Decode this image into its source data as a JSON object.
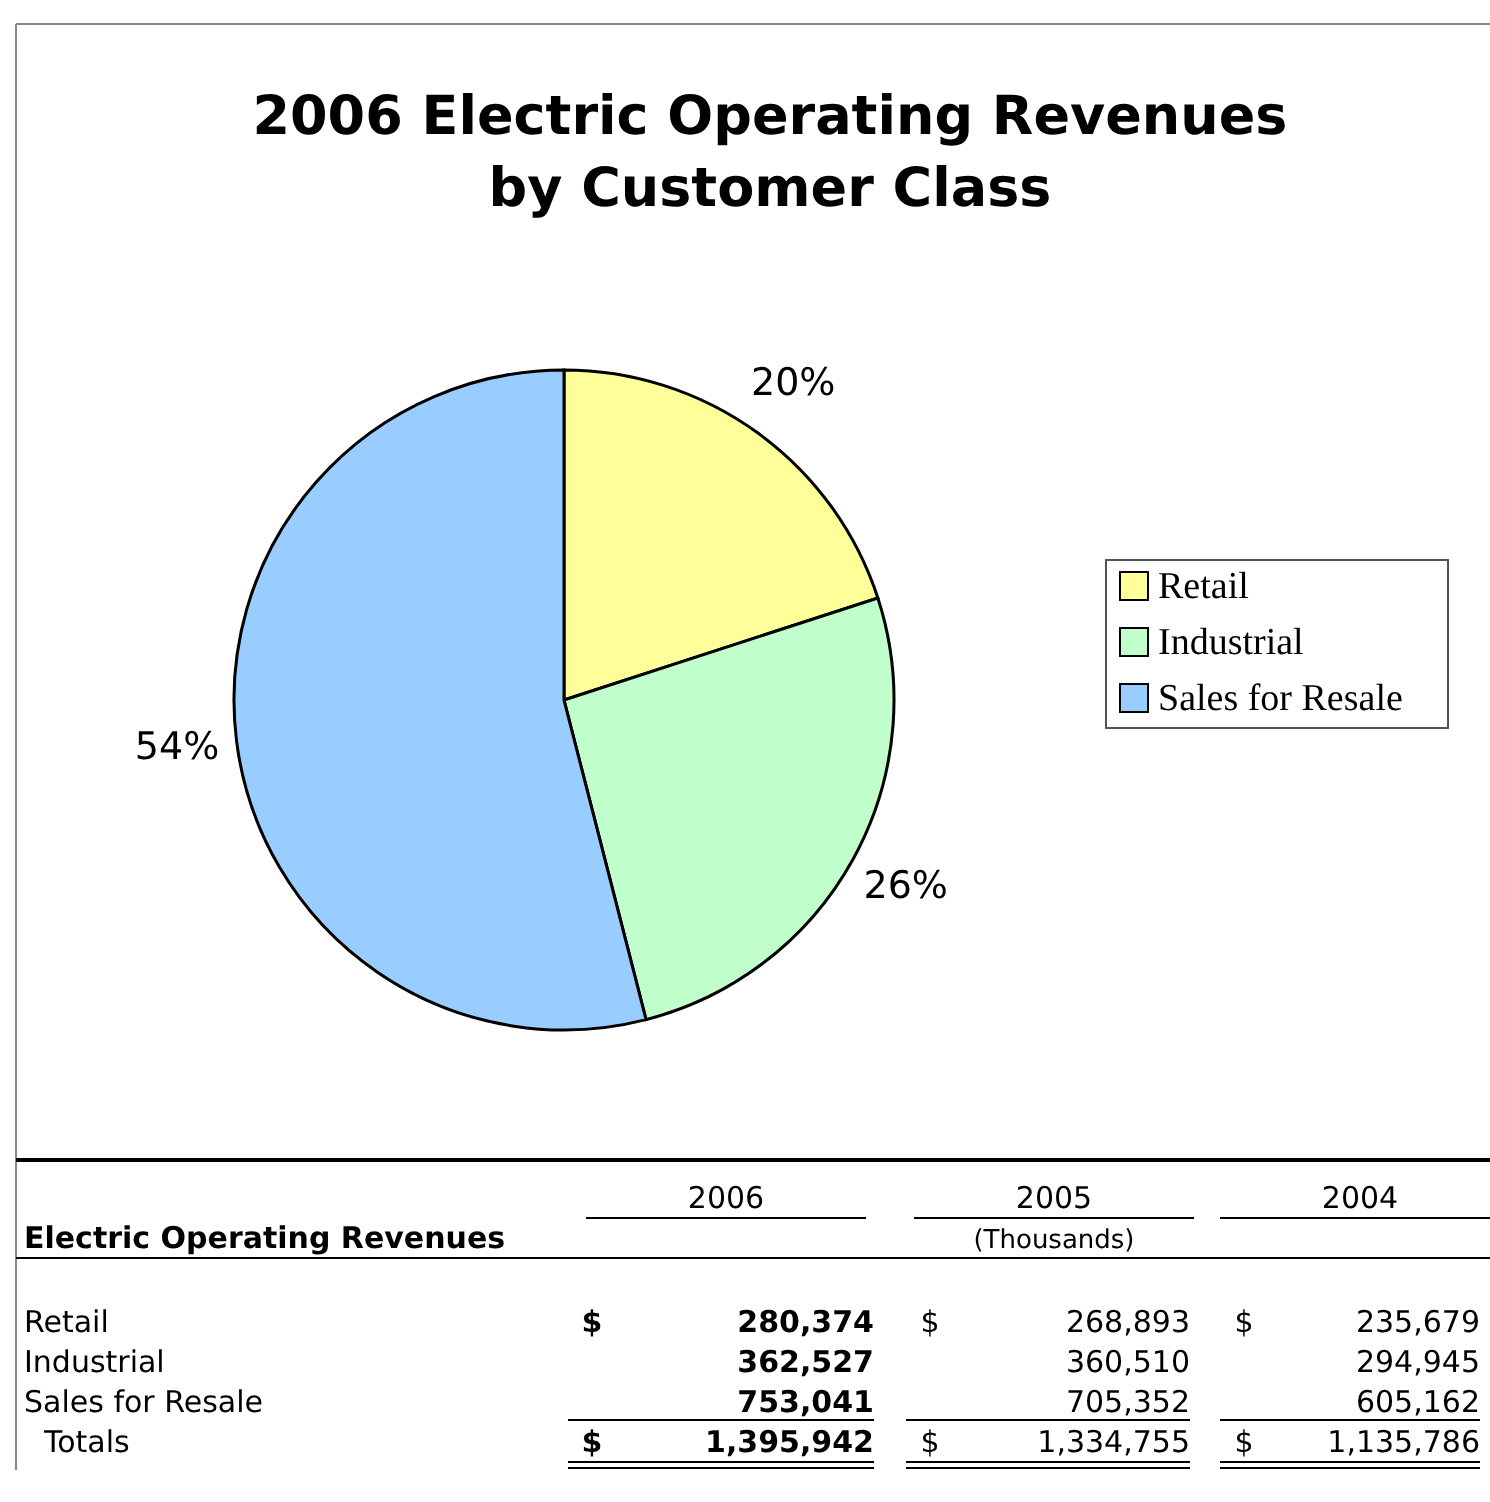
{
  "chart_data": [
    {
      "type": "pie",
      "title": "2006 Electric Operating Revenues by Customer Class",
      "categories": [
        "Retail",
        "Industrial",
        "Sales for Resale"
      ],
      "values": [
        20,
        26,
        54
      ],
      "value_labels": [
        "20%",
        "26%",
        "54%"
      ],
      "colors": [
        "#ffff99",
        "#c0ffcc",
        "#99ccff"
      ],
      "legend": "right"
    },
    {
      "type": "other",
      "title": "Electric Operating Revenues",
      "subtitle": "(Thousands)",
      "annotations": [
        "2006",
        "2005",
        "2004",
        "$",
        "Retail",
        "Industrial",
        "Sales for Resale",
        "Totals",
        "280,374",
        "268,893",
        "235,679",
        "362,527",
        "360,510",
        "294,945",
        "753,041",
        "705,352",
        "605,162",
        "1,395,942",
        "1,334,755",
        "1,135,786"
      ]
    }
  ]
}
